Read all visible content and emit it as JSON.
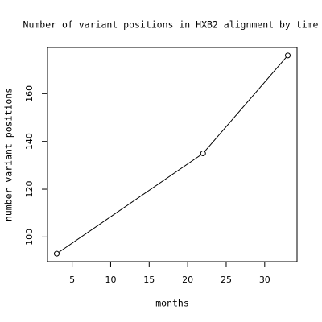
{
  "chart_data": {
    "type": "line",
    "markers": true,
    "title": "Number of variant positions in HXB2 alignment by time",
    "x_label": "months",
    "y_label": "number variant positions",
    "x": [
      3,
      22,
      33
    ],
    "values": [
      93,
      135,
      176
    ],
    "color": "#000000",
    "xlim": [
      1.8,
      34.2
    ],
    "ylim": [
      89.68,
      179.32
    ],
    "xticks": [
      5,
      10,
      15,
      20,
      25,
      30
    ],
    "yticks": [
      100,
      120,
      140,
      160
    ]
  }
}
